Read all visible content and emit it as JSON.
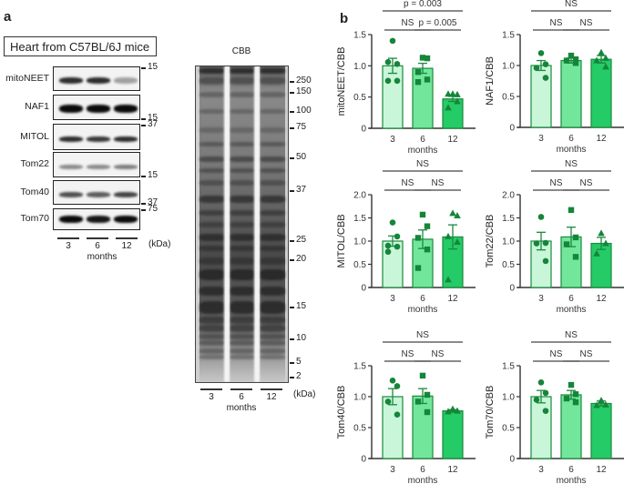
{
  "panel_a": {
    "letter": "a",
    "title": "Heart from C57BL/6J mice",
    "blots": [
      {
        "label": "mitoNEET",
        "markers": [
          {
            "text": "15",
            "pos": "top"
          }
        ]
      },
      {
        "label": "NAF1",
        "markers": [
          {
            "text": "15",
            "pos": "bottom"
          }
        ]
      },
      {
        "label": "MITOL",
        "markers": [
          {
            "text": "37",
            "pos": "top"
          }
        ]
      },
      {
        "label": "Tom22",
        "markers": [
          {
            "text": "15",
            "pos": "bottom"
          }
        ]
      },
      {
        "label": "Tom40",
        "markers": [
          {
            "text": "37",
            "pos": "bottom"
          }
        ]
      },
      {
        "label": "Tom70",
        "markers": [
          {
            "text": "75",
            "pos": "top"
          }
        ]
      }
    ],
    "lanes": [
      "3",
      "6",
      "12"
    ],
    "lanes_caption": "months",
    "unit": "(kDa)",
    "cbb": {
      "title": "CBB",
      "markers": [
        "250",
        "150",
        "100",
        "75",
        "50",
        "37",
        "25",
        "20",
        "15",
        "10",
        "5",
        "2"
      ],
      "lanes": [
        "3",
        "6",
        "12"
      ],
      "lanes_caption": "months",
      "unit": "(kDa)"
    }
  },
  "panel_b": {
    "letter": "b"
  },
  "colors": {
    "bar_3": "#c9f6d9",
    "bar_6": "#72e79c",
    "bar_12": "#24cb66",
    "edge": "#1b8a3d",
    "marker": "#15853a"
  },
  "chart_data": [
    {
      "type": "bar",
      "title": "",
      "ylabel": "mitoNEET/CBB",
      "xlabel": "months",
      "categories": [
        "3",
        "6",
        "12"
      ],
      "values": [
        1.0,
        0.96,
        0.47
      ],
      "sem": [
        0.12,
        0.08,
        0.04
      ],
      "points": [
        [
          1.4,
          1.03,
          1.06,
          0.76,
          0.76
        ],
        [
          1.13,
          1.12,
          0.9,
          0.78,
          0.74
        ],
        [
          0.55,
          0.54,
          0.55,
          0.43,
          0.33
        ]
      ],
      "markers": [
        "circle",
        "square",
        "triangle"
      ],
      "ylim": [
        0,
        1.5
      ],
      "yticks": [
        0,
        0.5,
        1.0,
        1.5
      ],
      "significance": [
        {
          "from": 0,
          "to": 2,
          "label": "p = 0.003",
          "level": 2
        },
        {
          "from": 0,
          "to": 1,
          "label": "NS",
          "level": 1
        },
        {
          "from": 1,
          "to": 2,
          "label": "p = 0.005",
          "level": 1
        }
      ]
    },
    {
      "type": "bar",
      "title": "",
      "ylabel": "NAF1/CBB",
      "xlabel": "months",
      "categories": [
        "3",
        "6",
        "12"
      ],
      "values": [
        1.0,
        1.08,
        1.1
      ],
      "sem": [
        0.08,
        0.04,
        0.06
      ],
      "points": [
        [
          1.2,
          1.02,
          0.96,
          0.8
        ],
        [
          1.16,
          1.1,
          1.08,
          1.04
        ],
        [
          1.21,
          1.12,
          1.08,
          0.98
        ]
      ],
      "markers": [
        "circle",
        "square",
        "triangle"
      ],
      "ylim": [
        0,
        1.5
      ],
      "yticks": [
        0,
        0.5,
        1.0,
        1.5
      ],
      "significance": [
        {
          "from": 0,
          "to": 2,
          "label": "NS",
          "level": 2
        },
        {
          "from": 0,
          "to": 1,
          "label": "NS",
          "level": 1
        },
        {
          "from": 1,
          "to": 2,
          "label": "NS",
          "level": 1
        }
      ]
    },
    {
      "type": "bar",
      "title": "",
      "ylabel": "MITOL/CBB",
      "xlabel": "months",
      "categories": [
        "3",
        "6",
        "12"
      ],
      "values": [
        1.0,
        1.04,
        1.09
      ],
      "sem": [
        0.11,
        0.2,
        0.26
      ],
      "points": [
        [
          1.4,
          1.1,
          0.9,
          0.88,
          0.77
        ],
        [
          1.57,
          1.32,
          1.07,
          0.82,
          0.42
        ],
        [
          1.6,
          1.55,
          1.1,
          0.98,
          0.17
        ]
      ],
      "markers": [
        "circle",
        "square",
        "triangle"
      ],
      "ylim": [
        0,
        2.0
      ],
      "yticks": [
        0,
        0.5,
        1.0,
        1.5,
        2.0
      ],
      "significance": [
        {
          "from": 0,
          "to": 2,
          "label": "NS",
          "level": 2
        },
        {
          "from": 0,
          "to": 1,
          "label": "NS",
          "level": 1
        },
        {
          "from": 1,
          "to": 2,
          "label": "NS",
          "level": 1
        }
      ]
    },
    {
      "type": "bar",
      "title": "",
      "ylabel": "Tom22/CBB",
      "xlabel": "months",
      "categories": [
        "3",
        "6",
        "12"
      ],
      "values": [
        1.0,
        1.09,
        0.95
      ],
      "sem": [
        0.19,
        0.21,
        0.13
      ],
      "points": [
        [
          1.52,
          0.96,
          0.95,
          0.57
        ],
        [
          1.67,
          1.08,
          0.93,
          0.66
        ],
        [
          1.17,
          0.95,
          0.73
        ]
      ],
      "markers": [
        "circle",
        "square",
        "triangle"
      ],
      "ylim": [
        0,
        2.0
      ],
      "yticks": [
        0,
        0.5,
        1.0,
        1.5,
        2.0
      ],
      "significance": [
        {
          "from": 0,
          "to": 2,
          "label": "NS",
          "level": 2
        },
        {
          "from": 0,
          "to": 1,
          "label": "NS",
          "level": 1
        },
        {
          "from": 1,
          "to": 2,
          "label": "NS",
          "level": 1
        }
      ]
    },
    {
      "type": "bar",
      "title": "",
      "ylabel": "Tom40/CBB",
      "xlabel": "months",
      "categories": [
        "3",
        "6",
        "12"
      ],
      "values": [
        1.0,
        1.01,
        0.77
      ],
      "sem": [
        0.13,
        0.12,
        0.02
      ],
      "points": [
        [
          1.26,
          1.17,
          0.92,
          0.71
        ],
        [
          1.34,
          1.03,
          0.92,
          0.75
        ],
        [
          0.8,
          0.77,
          0.76
        ]
      ],
      "markers": [
        "circle",
        "square",
        "triangle"
      ],
      "ylim": [
        0,
        1.5
      ],
      "yticks": [
        0,
        0.5,
        1.0,
        1.5
      ],
      "significance": [
        {
          "from": 0,
          "to": 2,
          "label": "NS",
          "level": 2
        },
        {
          "from": 0,
          "to": 1,
          "label": "NS",
          "level": 1
        },
        {
          "from": 1,
          "to": 2,
          "label": "NS",
          "level": 1
        }
      ]
    },
    {
      "type": "bar",
      "title": "",
      "ylabel": "Tom70/CBB",
      "xlabel": "months",
      "categories": [
        "3",
        "6",
        "12"
      ],
      "values": [
        1.0,
        1.03,
        0.89
      ],
      "sem": [
        0.1,
        0.07,
        0.04
      ],
      "points": [
        [
          1.23,
          1.06,
          0.95,
          0.77
        ],
        [
          1.19,
          1.04,
          0.97,
          0.91
        ],
        [
          0.94,
          0.87,
          0.86
        ]
      ],
      "markers": [
        "circle",
        "square",
        "triangle"
      ],
      "ylim": [
        0,
        1.5
      ],
      "yticks": [
        0,
        0.5,
        1.0,
        1.5
      ],
      "significance": [
        {
          "from": 0,
          "to": 2,
          "label": "NS",
          "level": 2
        },
        {
          "from": 0,
          "to": 1,
          "label": "NS",
          "level": 1
        },
        {
          "from": 1,
          "to": 2,
          "label": "NS",
          "level": 1
        }
      ]
    }
  ]
}
